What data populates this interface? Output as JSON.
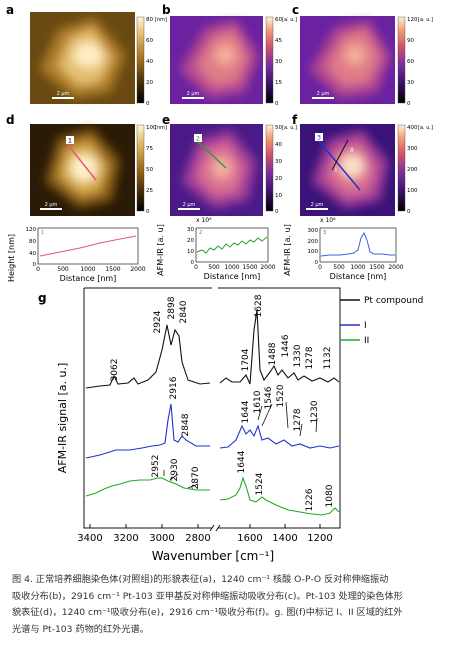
{
  "panels": [
    {
      "letter": "a",
      "cmax": "80",
      "cunit": "[nm]",
      "ticks": [
        "80",
        "60",
        "40",
        "20",
        "0"
      ],
      "scale": "2 μm",
      "cmap": "afm"
    },
    {
      "letter": "b",
      "cmax": "60",
      "cunit": "[a. u.]",
      "ticks": [
        "60",
        "45",
        "30",
        "15",
        "0"
      ],
      "scale": "2 μm",
      "cmap": "ir"
    },
    {
      "letter": "c",
      "cmax": "120",
      "cunit": "[a. u.]",
      "ticks": [
        "120",
        "90",
        "60",
        "30",
        "0"
      ],
      "scale": "2 μm",
      "cmap": "ir"
    },
    {
      "letter": "d",
      "cmax": "100",
      "cunit": "[nm]",
      "ticks": [
        "100",
        "75",
        "50",
        "25",
        "0"
      ],
      "scale": "2 μm",
      "cmap": "afm",
      "marker": "1"
    },
    {
      "letter": "e",
      "cmax": "50",
      "cunit": "[a. u.]",
      "ticks": [
        "50",
        "40",
        "30",
        "20",
        "10",
        "0"
      ],
      "scale": "2 μm",
      "cmap": "ir",
      "marker": "2"
    },
    {
      "letter": "f",
      "cmax": "400",
      "cunit": "[a. u.]",
      "ticks": [
        "400",
        "300",
        "200",
        "100",
        "0"
      ],
      "scale": "2 μm",
      "cmap": "ir",
      "marker": "3",
      "marker2": "II",
      "marker3": "I"
    }
  ],
  "profiles": [
    {
      "id": "1",
      "ylabel": "Height [nm]",
      "yticks": [
        "120",
        "80",
        "40",
        "0"
      ],
      "mult": "",
      "xticks": [
        "0",
        "500",
        "1000",
        "1500",
        "2000"
      ],
      "xlabel": "Distance [nm]",
      "color": "#e8557a"
    },
    {
      "id": "2",
      "ylabel": "AFM-IR [a. u]",
      "yticks": [
        "30",
        "20",
        "10",
        "0"
      ],
      "mult": "x 10⁶",
      "xticks": [
        "0",
        "500",
        "1000",
        "1500",
        "2000"
      ],
      "xlabel": "Distance [nm]",
      "color": "#2aa02a"
    },
    {
      "id": "3",
      "ylabel": "AFM-IR [a. u]",
      "yticks": [
        "300",
        "200",
        "100",
        "0"
      ],
      "mult": "x 10⁶",
      "xticks": [
        "0",
        "500",
        "1000",
        "1500",
        "2000"
      ],
      "xlabel": "Distance [nm]",
      "color": "#4060e0"
    }
  ],
  "chart_data": {
    "type": "line",
    "panel": "g",
    "ylabel": "AFM-IR signal [a. u.]",
    "xlabel": "Wavenumber [cm⁻¹]",
    "xticks": [
      "3400",
      "3200",
      "3000",
      "2800",
      "1600",
      "1400",
      "1200"
    ],
    "legend": [
      "Pt compound",
      "I",
      "II"
    ],
    "series": [
      {
        "name": "Pt compound",
        "color": "#111111",
        "peaks": [
          "3062",
          "2924",
          "2898",
          "2840",
          "1704",
          "1628",
          "1488",
          "1446",
          "1330",
          "1278",
          "1132"
        ]
      },
      {
        "name": "I",
        "color": "#2233cc",
        "peaks": [
          "2916",
          "2848",
          "1644",
          "1610",
          "1546",
          "1520",
          "1278",
          "1230"
        ]
      },
      {
        "name": "II",
        "color": "#22aa22",
        "peaks": [
          "2952",
          "2930",
          "2870",
          "1644",
          "1524",
          "1226",
          "1080"
        ]
      }
    ]
  },
  "caption": [
    "图 4. 正常培养细胞染色体(对照组)的形貌表征(a)，1240 cm⁻¹ 核酸 O-P-O 反对称伸缩振动",
    "吸收分布(b)，2916 cm⁻¹ Pt-103 亚甲基反对称伸缩振动吸收分布(c)。Pt-103 处理的染色体形",
    "貌表征(d)，1240 cm⁻¹吸收分布(e)，2916 cm⁻¹吸收分布(f)。g. 图(f)中标记 I、II 区域的红外",
    "光谱与 Pt-103 药物的红外光谱。"
  ]
}
